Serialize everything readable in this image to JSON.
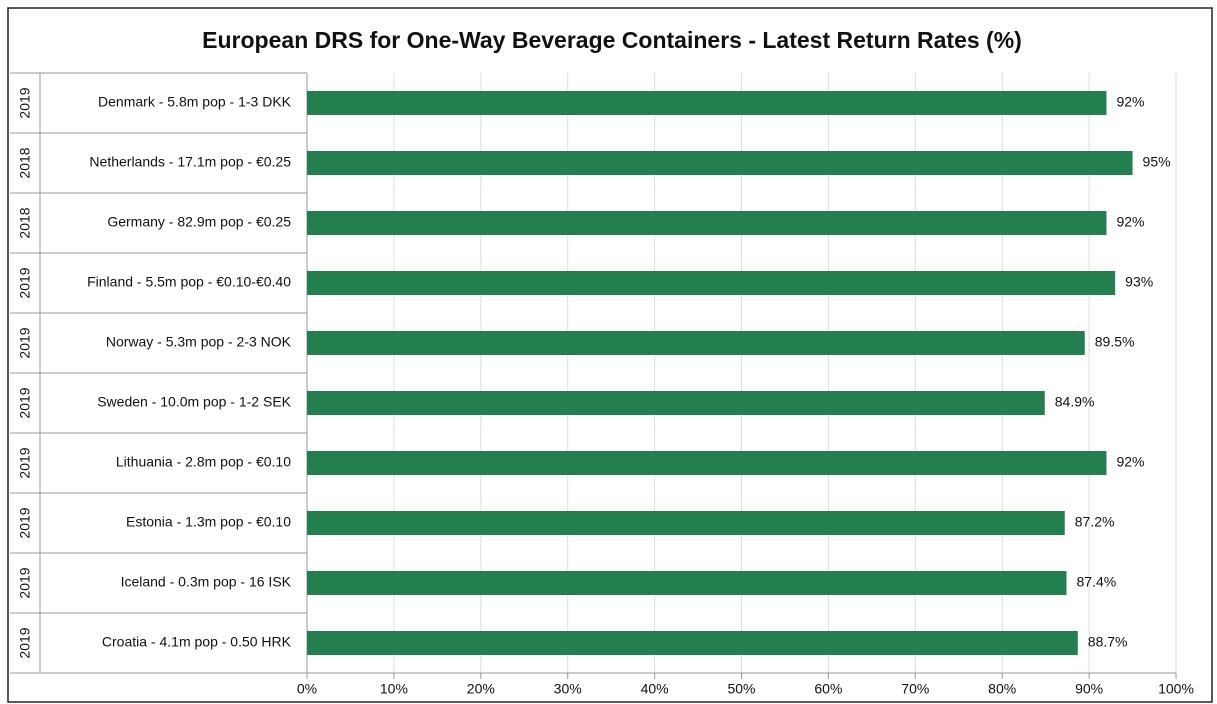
{
  "chart_data": {
    "type": "bar",
    "orientation": "horizontal",
    "title": "European DRS for One-Way Beverage Containers - Latest Return Rates (%)",
    "years": [
      "2019",
      "2018",
      "2018",
      "2019",
      "2019",
      "2019",
      "2019",
      "2019",
      "2019",
      "2019"
    ],
    "categories": [
      "Denmark - 5.8m pop - 1-3 DKK",
      "Netherlands - 17.1m pop - €0.25",
      "Germany - 82.9m pop - €0.25",
      "Finland - 5.5m pop - €0.10-€0.40",
      "Norway - 5.3m pop - 2-3 NOK",
      "Sweden - 10.0m pop - 1-2 SEK",
      "Lithuania - 2.8m pop - €0.10",
      "Estonia - 1.3m pop -  €0.10",
      "Iceland - 0.3m pop - 16 ISK",
      "Croatia - 4.1m pop - 0.50 HRK"
    ],
    "values": [
      92,
      95,
      92,
      93,
      89.5,
      84.9,
      92,
      87.2,
      87.4,
      88.7
    ],
    "value_labels": [
      "92%",
      "95%",
      "92%",
      "93%",
      "89.5%",
      "84.9%",
      "92%",
      "87.2%",
      "87.4%",
      "88.7%"
    ],
    "color": "#23804e",
    "xlim": [
      0,
      100
    ],
    "xticks": [
      {
        "value": 0,
        "label": "0%"
      },
      {
        "value": 10,
        "label": "10%"
      },
      {
        "value": 20,
        "label": "20%"
      },
      {
        "value": 30,
        "label": "30%"
      },
      {
        "value": 40,
        "label": "40%"
      },
      {
        "value": 50,
        "label": "50%"
      },
      {
        "value": 60,
        "label": "60%"
      },
      {
        "value": 70,
        "label": "70%"
      },
      {
        "value": 80,
        "label": "80%"
      },
      {
        "value": 90,
        "label": "90%"
      },
      {
        "value": 100,
        "label": "100%"
      }
    ],
    "grid": true
  }
}
